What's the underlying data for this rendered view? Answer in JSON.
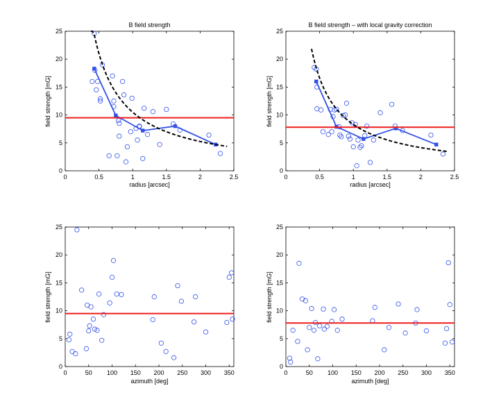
{
  "chart_data": [
    {
      "type": "scatter",
      "title": "B field strength",
      "xlabel": "radius [arcsec]",
      "ylabel": "field strength [mG]",
      "xlim": [
        0,
        2.5
      ],
      "ylim": [
        0,
        25
      ],
      "xticks": [
        0,
        0.5,
        1,
        1.5,
        2,
        2.5
      ],
      "xtick_labels": [
        "0",
        "0.5",
        "1",
        "1.5",
        "2",
        "2.5"
      ],
      "yticks": [
        0,
        5,
        10,
        15,
        20,
        25
      ],
      "ytick_labels": [
        "0",
        "5",
        "10",
        "15",
        "20",
        "25"
      ],
      "grid": false,
      "colors": {
        "points": "#3050e8",
        "binned": "#3050e8",
        "reference": "#ee1c1c",
        "fit": "#000000"
      },
      "series": [
        {
          "name": "measurements",
          "kind": "scatter",
          "x": [
            0.43,
            0.44,
            0.46,
            0.4,
            0.48,
            0.52,
            0.52,
            0.55,
            0.65,
            0.7,
            0.72,
            0.72,
            0.77,
            0.79,
            0.8,
            0.8,
            0.85,
            0.87,
            0.9,
            0.92,
            0.97,
            0.99,
            1.05,
            1.07,
            1.1,
            1.1,
            1.15,
            1.17,
            1.22,
            1.3,
            1.4,
            1.5,
            1.6,
            1.7,
            2.13,
            2.3
          ],
          "y": [
            24.6,
            18.0,
            14.5,
            16.0,
            16.0,
            12.9,
            12.5,
            19.0,
            2.7,
            17.0,
            12.5,
            11.5,
            2.7,
            9.0,
            6.2,
            8.5,
            16.0,
            13.6,
            1.6,
            4.3,
            7.0,
            13.0,
            7.6,
            5.5,
            7.9,
            8.0,
            2.2,
            11.2,
            6.5,
            10.6,
            4.7,
            11.0,
            8.4,
            7.3,
            6.4,
            3.1
          ]
        },
        {
          "name": "binned mean",
          "kind": "line",
          "x": [
            0.43,
            0.75,
            1.15,
            1.63,
            2.23
          ],
          "y": [
            18.3,
            9.9,
            7.2,
            8.0,
            4.7
          ]
        },
        {
          "name": "reference level",
          "kind": "hline",
          "y": 9.5
        },
        {
          "name": "fit",
          "kind": "dashed-curve",
          "law": "a / r",
          "a": 10.5,
          "x_range": [
            0.38,
            2.4
          ]
        }
      ]
    },
    {
      "type": "scatter",
      "title": "B field strength – with local gravity correction",
      "xlabel": "radius [arcsec]",
      "ylabel": "field strength [mG]",
      "xlim": [
        0,
        2.5
      ],
      "ylim": [
        0,
        25
      ],
      "xticks": [
        0,
        0.5,
        1,
        1.5,
        2,
        2.5
      ],
      "xtick_labels": [
        "0",
        "0.5",
        "1",
        "1.5",
        "2",
        "2.5"
      ],
      "yticks": [
        0,
        5,
        10,
        15,
        20,
        25
      ],
      "ytick_labels": [
        "0",
        "5",
        "10",
        "15",
        "20",
        "25"
      ],
      "grid": false,
      "colors": {
        "points": "#3050e8",
        "binned": "#3050e8",
        "reference": "#ee1c1c",
        "fit": "#000000"
      },
      "series": [
        {
          "name": "measurements",
          "kind": "scatter",
          "x": [
            0.42,
            0.45,
            0.46,
            0.46,
            0.52,
            0.55,
            0.63,
            0.66,
            0.68,
            0.7,
            0.72,
            0.75,
            0.79,
            0.8,
            0.82,
            0.85,
            0.88,
            0.9,
            0.93,
            0.95,
            0.98,
            1.0,
            1.03,
            1.05,
            1.07,
            1.1,
            1.12,
            1.17,
            1.2,
            1.25,
            1.3,
            1.4,
            1.57,
            1.62,
            1.73,
            2.15,
            2.33
          ],
          "y": [
            18.5,
            18.2,
            15.0,
            11.1,
            10.9,
            7.0,
            6.5,
            11.0,
            7.0,
            9.7,
            10.9,
            11.0,
            7.9,
            6.4,
            6.1,
            9.9,
            10.0,
            12.1,
            6.2,
            5.7,
            8.6,
            4.3,
            8.3,
            0.9,
            5.5,
            4.2,
            4.5,
            6.3,
            8.0,
            1.5,
            5.5,
            10.4,
            11.9,
            8.0,
            7.2,
            6.4,
            3.0
          ]
        },
        {
          "name": "binned mean",
          "kind": "line",
          "x": [
            0.45,
            0.75,
            1.15,
            1.63,
            2.23
          ],
          "y": [
            16.0,
            7.9,
            5.7,
            7.6,
            4.7
          ]
        },
        {
          "name": "reference level",
          "kind": "hline",
          "y": 7.8
        },
        {
          "name": "fit",
          "kind": "dashed-curve",
          "law": "a / r",
          "a": 8.3,
          "x_range": [
            0.38,
            2.4
          ]
        }
      ]
    },
    {
      "type": "scatter",
      "title": "",
      "xlabel": "azimuth [deg]",
      "ylabel": "field strength [mG]",
      "xlim": [
        0,
        360
      ],
      "ylim": [
        0,
        25
      ],
      "xticks": [
        0,
        50,
        100,
        150,
        200,
        250,
        300,
        350
      ],
      "xtick_labels": [
        "0",
        "50",
        "100",
        "150",
        "200",
        "250",
        "300",
        "350"
      ],
      "yticks": [
        0,
        5,
        10,
        15,
        20,
        25
      ],
      "ytick_labels": [
        "0",
        "5",
        "10",
        "15",
        "20",
        "25"
      ],
      "grid": false,
      "colors": {
        "points": "#3050e8",
        "reference": "#ee1c1c"
      },
      "series": [
        {
          "name": "measurements",
          "kind": "scatter",
          "x": [
            8,
            10,
            15,
            22,
            25,
            35,
            45,
            47,
            50,
            52,
            55,
            60,
            63,
            68,
            72,
            78,
            82,
            95,
            100,
            103,
            110,
            120,
            187,
            190,
            205,
            215,
            232,
            240,
            248,
            275,
            278,
            300,
            345,
            350,
            355,
            357
          ],
          "y": [
            4.8,
            5.8,
            2.7,
            2.3,
            24.5,
            13.7,
            3.2,
            11.0,
            6.4,
            7.3,
            10.7,
            8.5,
            6.7,
            6.5,
            13.0,
            4.7,
            9.3,
            11.4,
            16.0,
            19.0,
            13.0,
            12.9,
            8.4,
            12.5,
            4.2,
            2.7,
            1.6,
            14.5,
            11.7,
            8.0,
            12.5,
            6.2,
            7.9,
            16.0,
            16.8,
            8.5
          ]
        },
        {
          "name": "reference level",
          "kind": "hline",
          "y": 9.5
        }
      ]
    },
    {
      "type": "scatter",
      "title": "",
      "xlabel": "azimuth [deg]",
      "ylabel": "field strength [mG]",
      "xlim": [
        0,
        360
      ],
      "ylim": [
        0,
        25
      ],
      "xticks": [
        0,
        50,
        100,
        150,
        200,
        250,
        300,
        350
      ],
      "xtick_labels": [
        "0",
        "50",
        "100",
        "150",
        "200",
        "250",
        "300",
        "350"
      ],
      "yticks": [
        0,
        5,
        10,
        15,
        20,
        25
      ],
      "ytick_labels": [
        "0",
        "5",
        "10",
        "15",
        "20",
        "25"
      ],
      "grid": false,
      "colors": {
        "points": "#3050e8",
        "reference": "#ee1c1c"
      },
      "series": [
        {
          "name": "measurements",
          "kind": "scatter",
          "x": [
            8,
            10,
            15,
            25,
            28,
            35,
            42,
            46,
            50,
            55,
            60,
            63,
            68,
            72,
            80,
            82,
            88,
            98,
            103,
            110,
            120,
            185,
            190,
            210,
            220,
            240,
            255,
            277,
            280,
            300,
            340,
            343,
            347,
            350,
            355
          ],
          "y": [
            1.5,
            0.8,
            6.5,
            4.5,
            18.5,
            12.1,
            11.8,
            3.0,
            7.0,
            10.4,
            6.5,
            7.9,
            1.4,
            7.3,
            10.3,
            6.7,
            7.2,
            8.1,
            10.2,
            6.5,
            8.5,
            8.2,
            10.6,
            3.0,
            7.0,
            11.2,
            6.0,
            7.8,
            10.2,
            6.4,
            4.2,
            6.8,
            18.6,
            11.1,
            4.4
          ]
        },
        {
          "name": "reference level",
          "kind": "hline",
          "y": 7.8
        }
      ]
    }
  ]
}
